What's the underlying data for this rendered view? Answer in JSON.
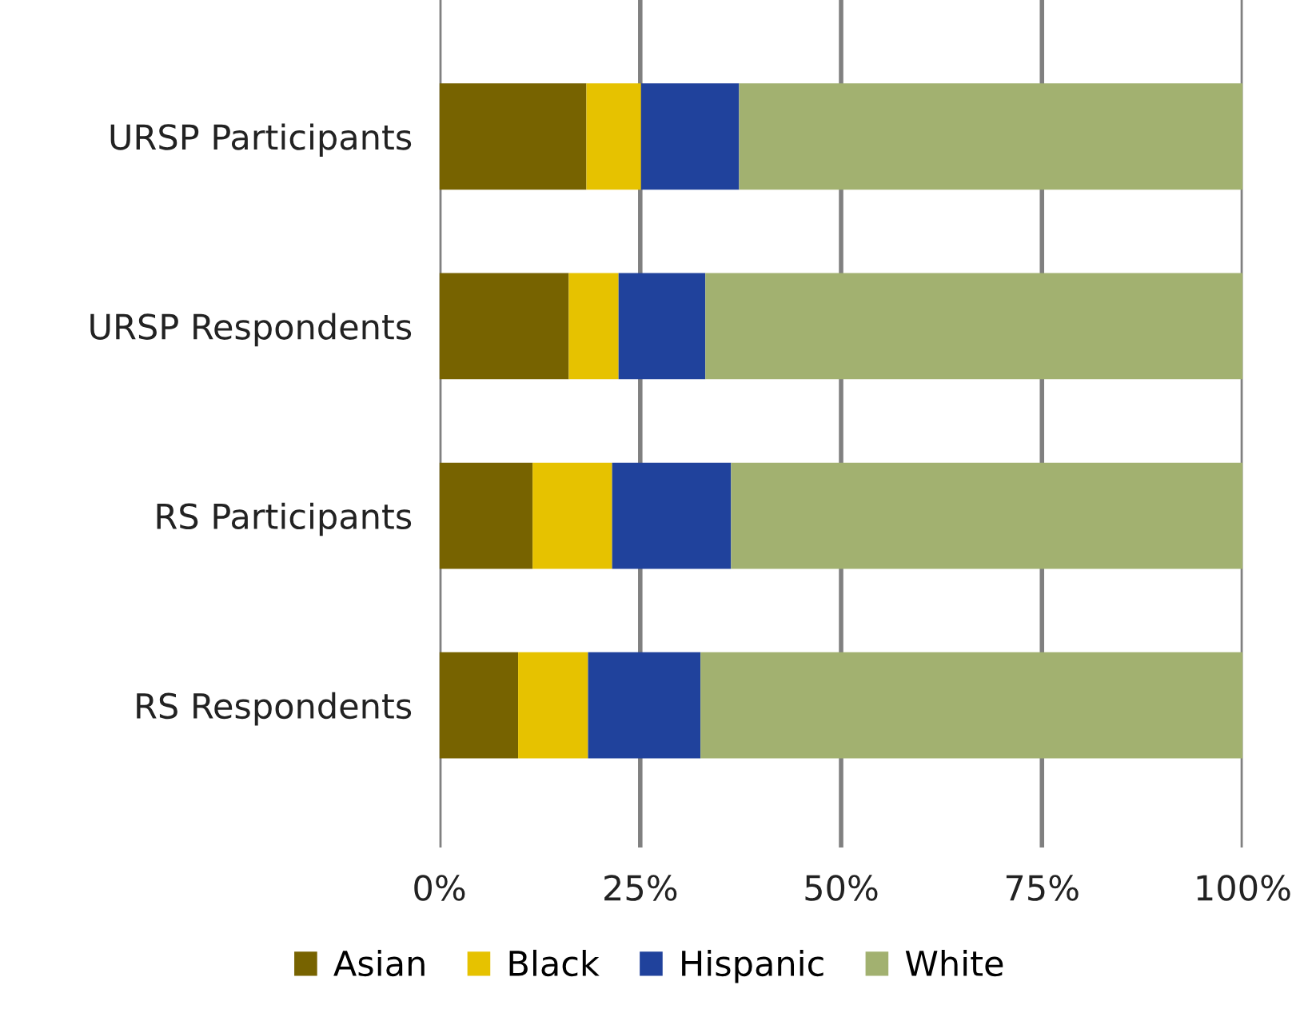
{
  "chart_data": {
    "type": "bar",
    "orientation": "horizontal",
    "stacked": true,
    "categories": [
      "URSP Participants",
      "URSP Respondents",
      "RS Participants",
      "RS Respondents"
    ],
    "series": [
      {
        "name": "Asian",
        "color": "#776300",
        "values": [
          18.3,
          16.1,
          11.6,
          9.8
        ]
      },
      {
        "name": "Black",
        "color": "#e6c200",
        "values": [
          6.8,
          6.2,
          9.9,
          8.7
        ]
      },
      {
        "name": "Hispanic",
        "color": "#20429c",
        "values": [
          12.2,
          10.8,
          14.8,
          14.0
        ]
      },
      {
        "name": "White",
        "color": "#a2b170",
        "values": [
          62.7,
          66.9,
          63.7,
          67.5
        ]
      }
    ],
    "xlim": [
      0,
      100
    ],
    "xticks": [
      {
        "value": 0,
        "label": "0%"
      },
      {
        "value": 25,
        "label": "25%"
      },
      {
        "value": 50,
        "label": "50%"
      },
      {
        "value": 75,
        "label": "75%"
      },
      {
        "value": 100,
        "label": "100%"
      }
    ],
    "grid": "x",
    "legend": "bottom"
  }
}
